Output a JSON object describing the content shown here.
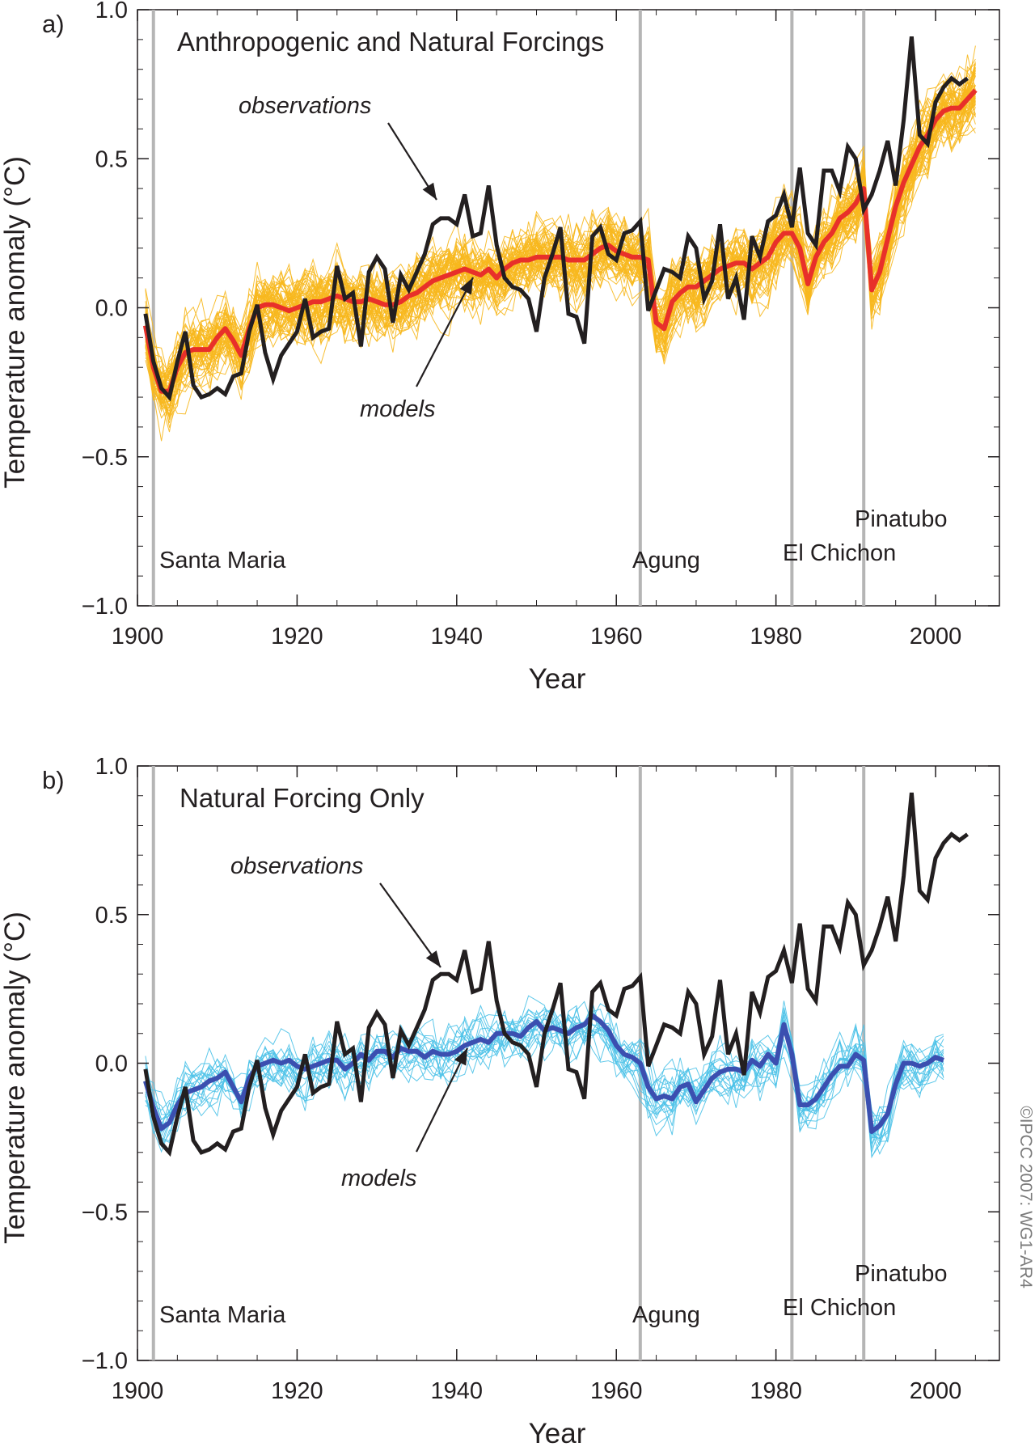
{
  "copyright": "©IPCC 2007: WG1-AR4",
  "chart_data": [
    {
      "type": "line",
      "panel_label": "a)",
      "title": "Anthropogenic and Natural Forcings",
      "xlabel": "Year",
      "ylabel": "Temperature anomaly (°C)",
      "xlim": [
        1900,
        2008
      ],
      "ylim": [
        -1.0,
        1.0
      ],
      "x_ticks": [
        "1900",
        "1920",
        "1940",
        "1960",
        "1980",
        "2000"
      ],
      "y_ticks": [
        "1.0",
        "0.5",
        "0.0",
        "−0.5",
        "−1.0"
      ],
      "grid": false,
      "volcanoes": [
        {
          "name": "Santa Maria",
          "year": 1902
        },
        {
          "name": "Agung",
          "year": 1963
        },
        {
          "name": "El Chichon",
          "year": 1982
        },
        {
          "name": "Pinatubo",
          "year": 1991
        }
      ],
      "annotations": {
        "observations": "observations",
        "models": "models"
      },
      "colors": {
        "observations": "#231f20",
        "model_mean": "#e8302a",
        "model_runs": "#f7b81e",
        "volcano_lines": "#b5b5b5"
      },
      "series": [
        {
          "role": "observations",
          "x_start": 1901,
          "values": [
            -0.02,
            -0.18,
            -0.27,
            -0.3,
            -0.18,
            -0.08,
            -0.26,
            -0.3,
            -0.29,
            -0.27,
            -0.29,
            -0.23,
            -0.22,
            -0.08,
            0.01,
            -0.15,
            -0.24,
            -0.16,
            -0.12,
            -0.08,
            0.03,
            -0.1,
            -0.08,
            -0.07,
            0.14,
            0.03,
            0.05,
            -0.13,
            0.12,
            0.17,
            0.13,
            -0.05,
            0.11,
            0.06,
            0.12,
            0.18,
            0.28,
            0.3,
            0.3,
            0.28,
            0.38,
            0.24,
            0.25,
            0.41,
            0.21,
            0.1,
            0.07,
            0.06,
            0.03,
            -0.08,
            0.1,
            0.18,
            0.27,
            -0.02,
            -0.03,
            -0.12,
            0.24,
            0.27,
            0.18,
            0.16,
            0.25,
            0.26,
            0.29,
            -0.01,
            0.06,
            0.13,
            0.12,
            0.1,
            0.24,
            0.2,
            0.03,
            0.09,
            0.28,
            0.03,
            0.1,
            -0.04,
            0.24,
            0.17,
            0.29,
            0.31,
            0.38,
            0.27,
            0.47,
            0.25,
            0.21,
            0.46,
            0.46,
            0.39,
            0.54,
            0.5,
            0.33,
            0.38,
            0.46,
            0.56,
            0.41,
            0.63,
            0.91,
            0.58,
            0.55,
            0.69,
            0.74,
            0.77,
            0.75,
            0.77
          ]
        },
        {
          "role": "model_mean",
          "x_start": 1901,
          "values": [
            -0.06,
            -0.2,
            -0.28,
            -0.28,
            -0.2,
            -0.15,
            -0.14,
            -0.14,
            -0.14,
            -0.1,
            -0.07,
            -0.11,
            -0.16,
            -0.07,
            0.0,
            0.01,
            0.01,
            0.0,
            -0.01,
            0.0,
            0.01,
            0.02,
            0.02,
            0.03,
            0.04,
            0.03,
            0.02,
            0.02,
            0.03,
            0.02,
            0.01,
            0.01,
            0.02,
            0.04,
            0.05,
            0.07,
            0.09,
            0.1,
            0.11,
            0.12,
            0.13,
            0.12,
            0.11,
            0.13,
            0.1,
            0.13,
            0.15,
            0.16,
            0.16,
            0.17,
            0.17,
            0.17,
            0.17,
            0.16,
            0.16,
            0.16,
            0.18,
            0.2,
            0.21,
            0.19,
            0.18,
            0.17,
            0.17,
            0.16,
            -0.05,
            -0.07,
            0.02,
            0.05,
            0.07,
            0.07,
            0.09,
            0.11,
            0.13,
            0.14,
            0.15,
            0.15,
            0.13,
            0.15,
            0.17,
            0.22,
            0.25,
            0.25,
            0.2,
            0.08,
            0.17,
            0.22,
            0.25,
            0.3,
            0.32,
            0.35,
            0.4,
            0.06,
            0.12,
            0.23,
            0.34,
            0.42,
            0.48,
            0.54,
            0.58,
            0.63,
            0.66,
            0.67,
            0.67,
            0.7,
            0.73
          ]
        }
      ]
    },
    {
      "type": "line",
      "panel_label": "b)",
      "title": "Natural Forcing Only",
      "xlabel": "Year",
      "ylabel": "Temperature anomaly (°C)",
      "xlim": [
        1900,
        2008
      ],
      "ylim": [
        -1.0,
        1.0
      ],
      "x_ticks": [
        "1900",
        "1920",
        "1940",
        "1960",
        "1980",
        "2000"
      ],
      "y_ticks": [
        "1.0",
        "0.5",
        "0.0",
        "−0.5",
        "−1.0"
      ],
      "grid": false,
      "volcanoes": [
        {
          "name": "Santa Maria",
          "year": 1902
        },
        {
          "name": "Agung",
          "year": 1963
        },
        {
          "name": "El Chichon",
          "year": 1982
        },
        {
          "name": "Pinatubo",
          "year": 1991
        }
      ],
      "annotations": {
        "observations": "observations",
        "models": "models"
      },
      "colors": {
        "observations": "#231f20",
        "model_mean": "#3b4fb0",
        "model_runs": "#4cc2e8",
        "volcano_lines": "#b5b5b5"
      },
      "series": [
        {
          "role": "observations",
          "x_start": 1901,
          "values": [
            -0.02,
            -0.18,
            -0.27,
            -0.3,
            -0.18,
            -0.08,
            -0.26,
            -0.3,
            -0.29,
            -0.27,
            -0.29,
            -0.23,
            -0.22,
            -0.08,
            0.01,
            -0.15,
            -0.24,
            -0.16,
            -0.12,
            -0.08,
            0.03,
            -0.1,
            -0.08,
            -0.07,
            0.14,
            0.03,
            0.05,
            -0.13,
            0.12,
            0.17,
            0.13,
            -0.05,
            0.11,
            0.06,
            0.12,
            0.18,
            0.28,
            0.3,
            0.3,
            0.28,
            0.38,
            0.24,
            0.25,
            0.41,
            0.21,
            0.1,
            0.07,
            0.06,
            0.03,
            -0.08,
            0.1,
            0.18,
            0.27,
            -0.02,
            -0.03,
            -0.12,
            0.24,
            0.27,
            0.18,
            0.16,
            0.25,
            0.26,
            0.29,
            -0.01,
            0.06,
            0.13,
            0.12,
            0.1,
            0.24,
            0.2,
            0.03,
            0.09,
            0.28,
            0.03,
            0.1,
            -0.04,
            0.24,
            0.17,
            0.29,
            0.31,
            0.38,
            0.27,
            0.47,
            0.25,
            0.21,
            0.46,
            0.46,
            0.39,
            0.54,
            0.5,
            0.33,
            0.38,
            0.46,
            0.56,
            0.41,
            0.63,
            0.91,
            0.58,
            0.55,
            0.69,
            0.74,
            0.77,
            0.75,
            0.77
          ]
        },
        {
          "role": "model_mean",
          "x_start": 1901,
          "values": [
            -0.06,
            -0.15,
            -0.22,
            -0.2,
            -0.14,
            -0.1,
            -0.09,
            -0.08,
            -0.06,
            -0.05,
            -0.03,
            -0.08,
            -0.13,
            -0.05,
            -0.01,
            0.0,
            0.01,
            0.0,
            0.01,
            -0.01,
            -0.02,
            -0.01,
            0.0,
            0.01,
            0.01,
            -0.02,
            0.0,
            0.03,
            0.01,
            0.04,
            0.04,
            0.02,
            0.05,
            0.04,
            0.04,
            0.02,
            0.04,
            0.03,
            0.03,
            0.04,
            0.06,
            0.07,
            0.08,
            0.07,
            0.1,
            0.1,
            0.1,
            0.09,
            0.12,
            0.14,
            0.11,
            0.12,
            0.11,
            0.1,
            0.12,
            0.13,
            0.16,
            0.14,
            0.11,
            0.06,
            0.03,
            0.02,
            0.0,
            -0.08,
            -0.12,
            -0.11,
            -0.12,
            -0.08,
            -0.07,
            -0.13,
            -0.09,
            -0.05,
            -0.03,
            -0.02,
            -0.02,
            -0.03,
            0.01,
            -0.01,
            0.03,
            0.0,
            0.13,
            0.03,
            -0.14,
            -0.14,
            -0.12,
            -0.08,
            -0.04,
            -0.01,
            -0.01,
            0.03,
            0.01,
            -0.23,
            -0.21,
            -0.17,
            -0.07,
            0.0,
            0.0,
            -0.01,
            0.0,
            0.02,
            0.01
          ]
        }
      ]
    }
  ]
}
